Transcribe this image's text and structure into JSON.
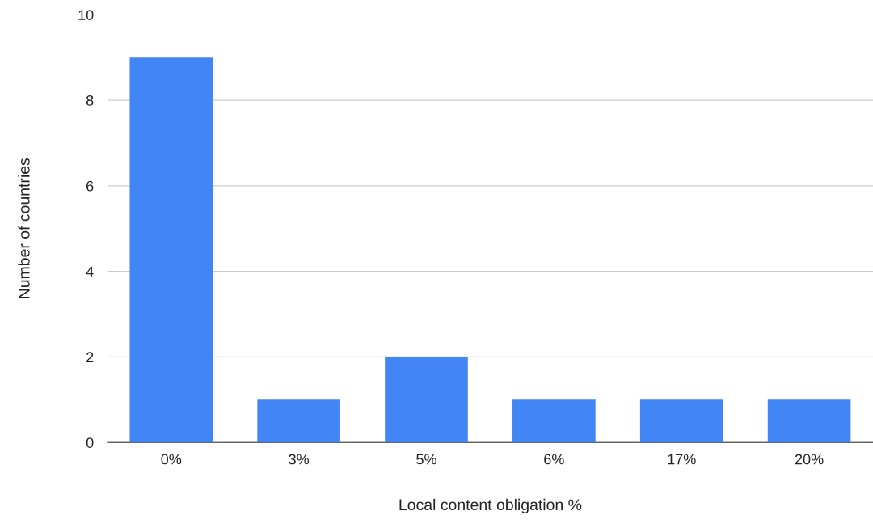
{
  "chart_data": {
    "type": "bar",
    "xlabel": "Local content obligation %",
    "ylabel": "Number of countries",
    "categories": [
      "0%",
      "3%",
      "5%",
      "6%",
      "17%",
      "20%"
    ],
    "values": [
      9,
      1,
      2,
      1,
      1,
      1
    ],
    "color": "#4285f4",
    "ylim": [
      0,
      10
    ],
    "yticks": [
      0,
      2,
      4,
      6,
      8,
      10
    ],
    "grid": "y",
    "legend": false
  }
}
